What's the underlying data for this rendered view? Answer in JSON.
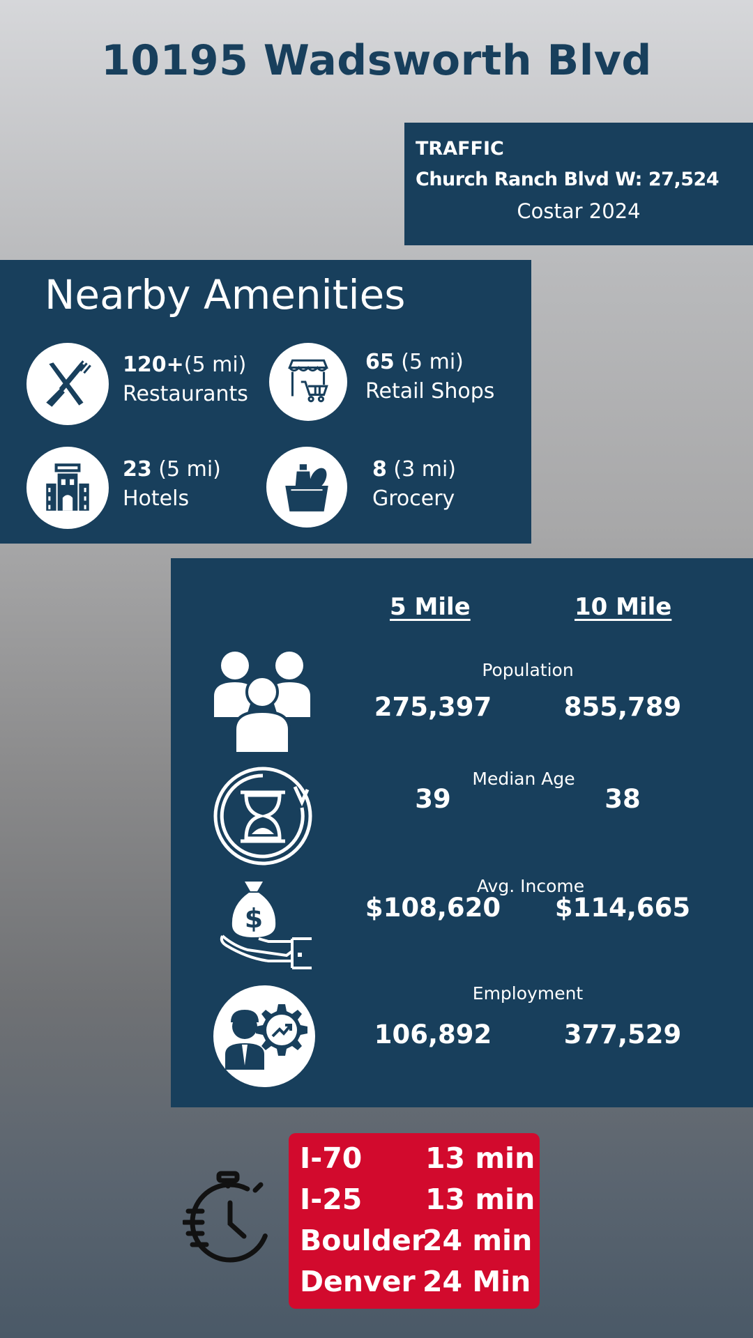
{
  "title": "10195 Wadsworth Blvd",
  "traffic": {
    "label": "TRAFFIC",
    "count": "Church Ranch Blvd W: 27,524",
    "source": "Costar 2024"
  },
  "amenities": {
    "heading": "Nearby Amenities",
    "items": [
      {
        "count": "120+",
        "radius": "(5 mi)",
        "name": "Restaurants",
        "icon": "fork-knife-icon"
      },
      {
        "count": "65",
        "radius": " (5 mi)",
        "name": "Retail Shops",
        "icon": "shop-cart-icon"
      },
      {
        "count": "23",
        "radius": " (5 mi)",
        "name": "Hotels",
        "icon": "hotel-icon"
      },
      {
        "count": "8",
        "radius": " (3 mi)",
        "name": "Grocery",
        "icon": "grocery-bag-icon"
      }
    ]
  },
  "demographics": {
    "col1": "5 Mile",
    "col2": "10 Mile",
    "rows": [
      {
        "label": "Population",
        "v5": "275,397",
        "v10": "855,789",
        "icon": "people-icon"
      },
      {
        "label": "Median Age",
        "v5": "39",
        "v10": "38",
        "icon": "hourglass-icon"
      },
      {
        "label": "Avg. Income",
        "v5": "$108,620",
        "v10": "$114,665",
        "icon": "money-bag-hand-icon"
      },
      {
        "label": "Employment",
        "v5": "106,892",
        "v10": "377,529",
        "icon": "worker-gear-icon"
      }
    ]
  },
  "drive_times": [
    {
      "place": "I-70",
      "time": "13 min"
    },
    {
      "place": "I-25",
      "time": "13 min"
    },
    {
      "place": "Boulder",
      "time": "24 min"
    },
    {
      "place": "Denver",
      "time": "24 Min"
    }
  ],
  "colors": {
    "navy": "#183f5c",
    "red": "#d20a2d"
  }
}
